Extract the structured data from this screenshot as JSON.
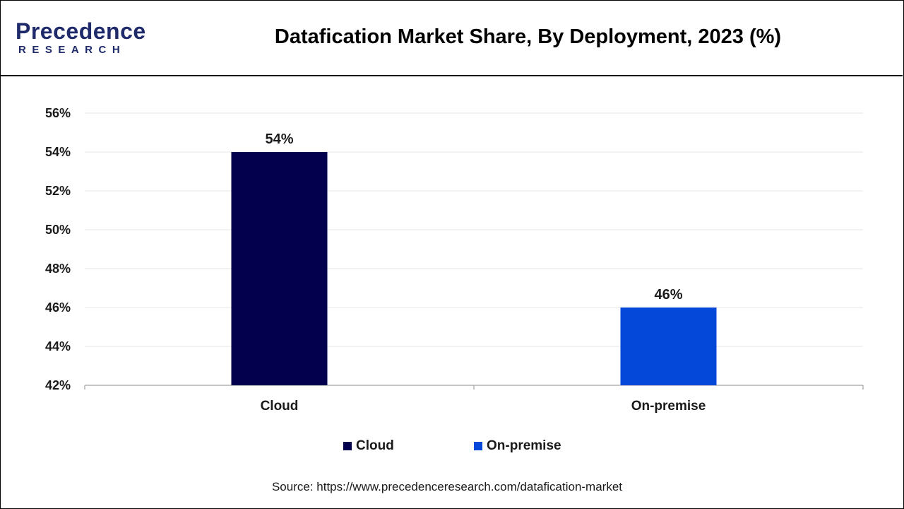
{
  "header": {
    "logo_primary": "Precedence",
    "logo_secondary": "RESEARCH",
    "title": "Datafication Market Share, By Deployment, 2023 (%)"
  },
  "colors": {
    "cloud": "#03004d",
    "on_premise": "#0348d8",
    "brand": "#1f2a6b",
    "gridline": "#e6e6e6"
  },
  "chart_data": {
    "type": "bar",
    "title": "Datafication Market Share, By Deployment, 2023 (%)",
    "categories": [
      "Cloud",
      "On-premise"
    ],
    "values": [
      54,
      46
    ],
    "value_labels": [
      "54%",
      "46%"
    ],
    "bar_colors": [
      "#03004d",
      "#0348d8"
    ],
    "ylim": [
      42,
      56
    ],
    "yticks": [
      42,
      44,
      46,
      48,
      50,
      52,
      54,
      56
    ],
    "ytick_labels": [
      "42%",
      "44%",
      "46%",
      "48%",
      "50%",
      "52%",
      "54%",
      "56%"
    ],
    "grid": true,
    "legend_position": "bottom",
    "xlabel": "",
    "ylabel": ""
  },
  "legend": {
    "items": [
      {
        "label": "Cloud",
        "color": "#03004d"
      },
      {
        "label": "On-premise",
        "color": "#0348d8"
      }
    ]
  },
  "source": "Source: https://www.precedenceresearch.com/datafication-market"
}
